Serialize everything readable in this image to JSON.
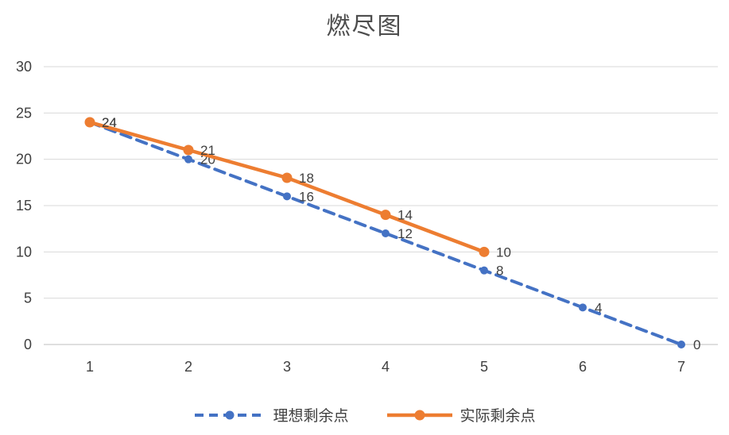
{
  "chart_data": {
    "type": "line",
    "title": "燃尽图",
    "categories": [
      "1",
      "2",
      "3",
      "4",
      "5",
      "6",
      "7"
    ],
    "y_ticks": [
      0,
      5,
      10,
      15,
      20,
      25,
      30
    ],
    "ylim": [
      0,
      30
    ],
    "grid": true,
    "legend_position": "bottom",
    "data_labels": true,
    "series": [
      {
        "name": "理想剩余点",
        "color": "#4472C4",
        "style": "dashed",
        "values": [
          24,
          20,
          16,
          12,
          8,
          4,
          0
        ]
      },
      {
        "name": "实际剩余点",
        "color": "#ED7D31",
        "style": "solid",
        "values": [
          24,
          21,
          18,
          14,
          10
        ]
      }
    ]
  }
}
